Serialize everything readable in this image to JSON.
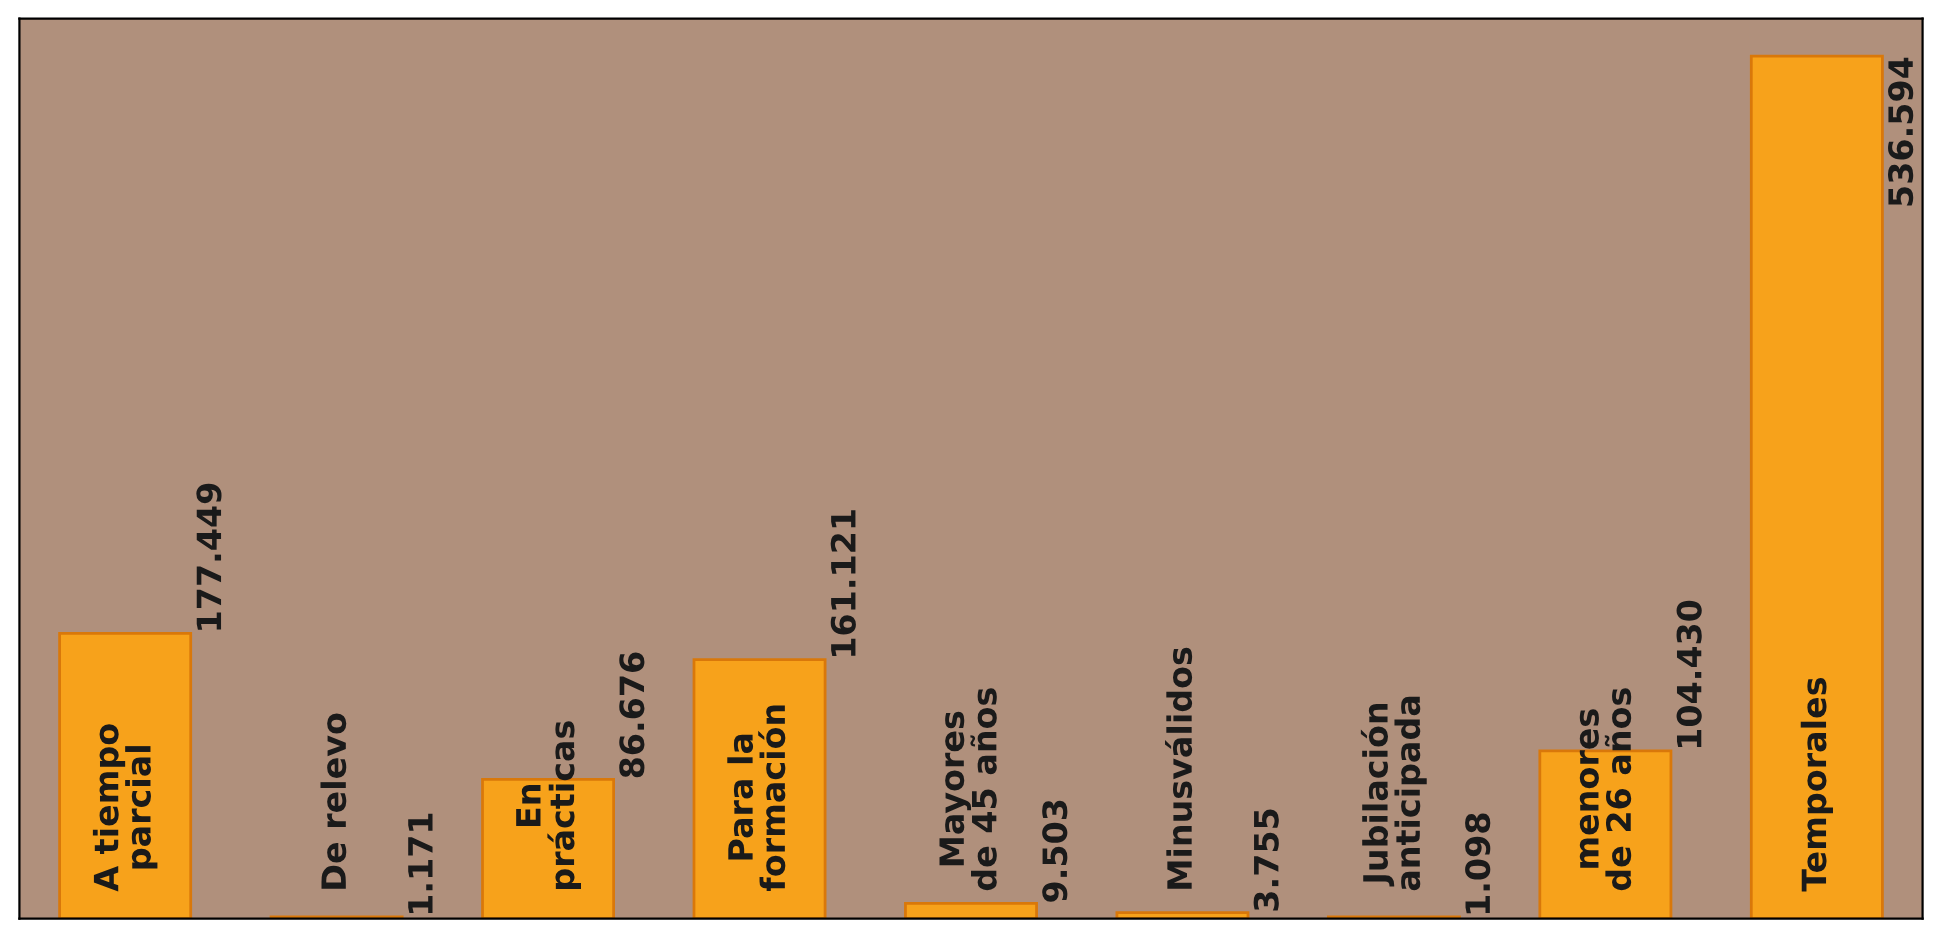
{
  "chart_data": {
    "type": "bar",
    "categories": [
      "A tiempo\nparcial",
      "De relevo",
      "En\nprácticas",
      "Para la\nformación",
      "Mayores\nde 45 años",
      "Minusválidos",
      "Jubilación\nanticipada",
      "menores\nde 26 años",
      "Temporales"
    ],
    "values": [
      177449,
      1171,
      86676,
      161121,
      9503,
      3755,
      1098,
      104430,
      536594
    ],
    "value_labels": [
      "177.449",
      "1.171",
      "86.676",
      "161.121",
      "9.503",
      "3.755",
      "1.098",
      "104.430",
      "536.594"
    ],
    "color": "#f7a21b",
    "ylim": [
      0,
      560000
    ]
  }
}
